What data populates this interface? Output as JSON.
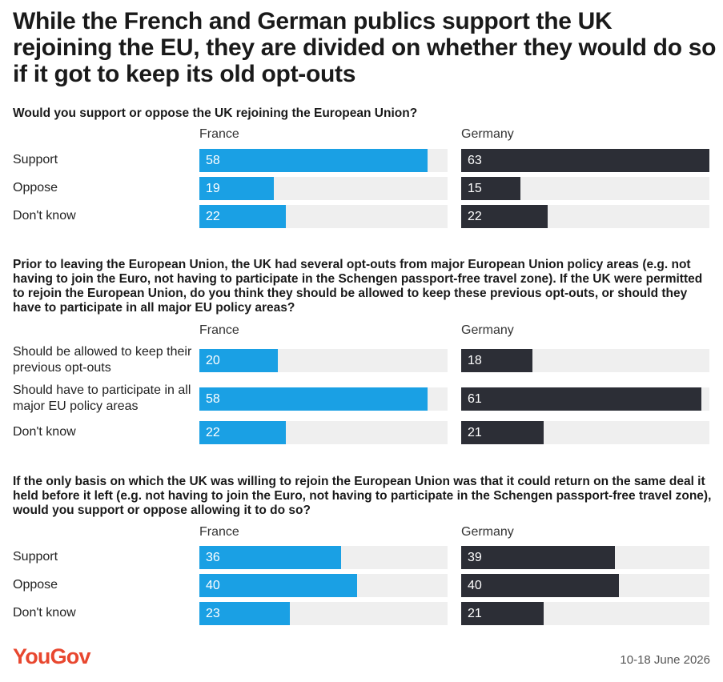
{
  "title": "While the French and German publics support the UK rejoining the EU, they are divided on whether they would do so if it got to keep its old opt-outs",
  "colors": {
    "France": "#1aa0e4",
    "Germany": "#2c2e36",
    "track": "#efefef",
    "brand": "#e8472f"
  },
  "footer": {
    "logo": "YouGov",
    "date": "10-18 June 2026"
  },
  "chart_data": [
    {
      "type": "bar",
      "orientation": "horizontal",
      "title": "Would you support or oppose the UK rejoining the European Union?",
      "categories": [
        "Support",
        "Oppose",
        "Don't know"
      ],
      "series": [
        {
          "name": "France",
          "values": [
            58,
            19,
            22
          ]
        },
        {
          "name": "Germany",
          "values": [
            63,
            15,
            22
          ]
        }
      ],
      "xlim": [
        0,
        63
      ]
    },
    {
      "type": "bar",
      "orientation": "horizontal",
      "title": "Prior to leaving the European Union, the UK had several opt-outs from major European Union policy areas (e.g. not having to join the Euro, not having to participate in the Schengen passport-free travel zone). If the UK were permitted to rejoin the European Union, do you think they should be allowed to keep these previous opt-outs, or should they have to participate in all major EU policy areas?",
      "categories": [
        "Should be allowed to keep their previous opt-outs",
        "Should have to participate in all major EU policy areas",
        "Don't know"
      ],
      "series": [
        {
          "name": "France",
          "values": [
            20,
            58,
            22
          ]
        },
        {
          "name": "Germany",
          "values": [
            18,
            61,
            21
          ]
        }
      ],
      "xlim": [
        0,
        63
      ]
    },
    {
      "type": "bar",
      "orientation": "horizontal",
      "title": "If the only basis on which the UK was willing to rejoin the European Union was that it could return on the same deal it held before it left (e.g. not having to join the Euro, not having to participate in the Schengen passport-free travel zone), would you support or oppose allowing it to do so?",
      "categories": [
        "Support",
        "Oppose",
        "Don't know"
      ],
      "series": [
        {
          "name": "France",
          "values": [
            36,
            40,
            23
          ]
        },
        {
          "name": "Germany",
          "values": [
            39,
            40,
            21
          ]
        }
      ],
      "xlim": [
        0,
        63
      ]
    }
  ]
}
